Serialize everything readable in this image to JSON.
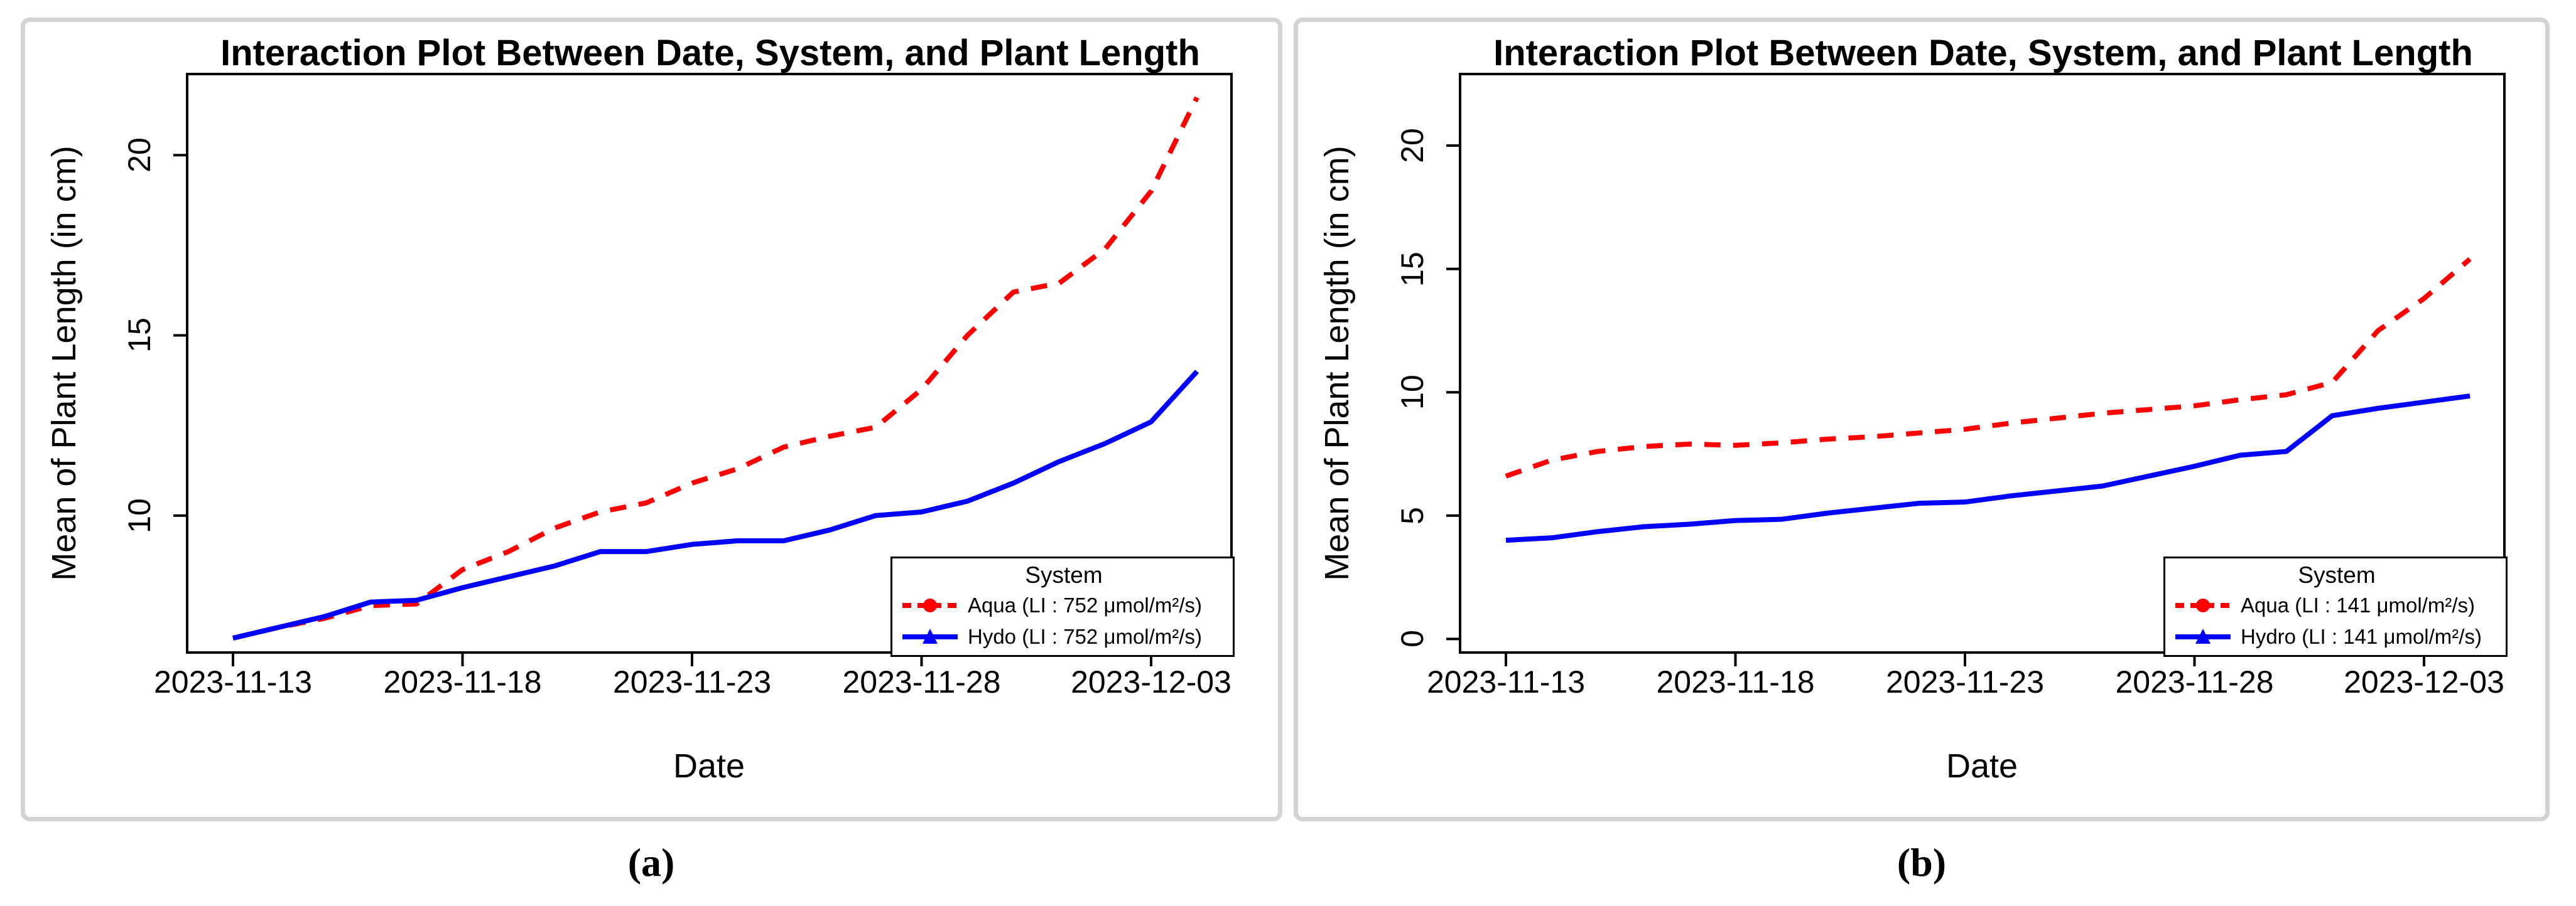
{
  "figure": {
    "panel_labels": [
      "(a)",
      "(b)"
    ],
    "background": "#ffffff",
    "panel_border_color": "#d3d3d3",
    "axis_color": "#000000"
  },
  "chart_data": [
    {
      "type": "line",
      "title": "Interaction Plot Between Date, System, and Plant Length",
      "xlabel": "Date",
      "ylabel": "Mean of Plant Length (in cm)",
      "x": [
        "2023-11-13",
        "2023-11-14",
        "2023-11-15",
        "2023-11-16",
        "2023-11-17",
        "2023-11-18",
        "2023-11-19",
        "2023-11-20",
        "2023-11-21",
        "2023-11-22",
        "2023-11-23",
        "2023-11-24",
        "2023-11-25",
        "2023-11-26",
        "2023-11-27",
        "2023-11-28",
        "2023-11-29",
        "2023-11-30",
        "2023-12-01",
        "2023-12-02",
        "2023-12-03",
        "2023-12-04"
      ],
      "x_tick_labels": [
        "2023-11-13",
        "2023-11-18",
        "2023-11-23",
        "2023-11-28",
        "2023-12-03"
      ],
      "y_ticks": [
        10,
        15,
        20
      ],
      "ylim": [
        6.2,
        22.25
      ],
      "grid": false,
      "legend": {
        "title": "System",
        "position": "bottom-right"
      },
      "series": [
        {
          "name": "Aqua (LI : 752 μmol/m²/s)",
          "color": "#FF0000",
          "line_style": "dashed",
          "marker": "circle",
          "values": [
            6.6,
            6.9,
            7.15,
            7.5,
            7.55,
            8.5,
            9.0,
            9.65,
            10.1,
            10.35,
            10.9,
            11.3,
            11.9,
            12.2,
            12.45,
            13.5,
            15.0,
            16.2,
            16.45,
            17.4,
            19.0,
            21.6
          ]
        },
        {
          "name": "Hydo (LI : 752 μmol/m²/s)",
          "color": "#0000FF",
          "line_style": "solid",
          "marker": "triangle",
          "values": [
            6.6,
            6.9,
            7.2,
            7.6,
            7.65,
            8.0,
            8.3,
            8.6,
            9.0,
            9.0,
            9.2,
            9.3,
            9.3,
            9.6,
            10.0,
            10.1,
            10.4,
            10.9,
            11.5,
            12.0,
            12.6,
            14.0
          ]
        }
      ]
    },
    {
      "type": "line",
      "title": "Interaction Plot Between Date, System, and Plant Length",
      "xlabel": "Date",
      "ylabel": "Mean of Plant Length (in cm)",
      "x": [
        "2023-11-13",
        "2023-11-14",
        "2023-11-15",
        "2023-11-16",
        "2023-11-17",
        "2023-11-18",
        "2023-11-19",
        "2023-11-20",
        "2023-11-21",
        "2023-11-22",
        "2023-11-23",
        "2023-11-24",
        "2023-11-25",
        "2023-11-26",
        "2023-11-27",
        "2023-11-28",
        "2023-11-29",
        "2023-11-30",
        "2023-12-01",
        "2023-12-02",
        "2023-12-03",
        "2023-12-04"
      ],
      "x_tick_labels": [
        "2023-11-13",
        "2023-11-18",
        "2023-11-23",
        "2023-11-28",
        "2023-12-03"
      ],
      "y_ticks": [
        0,
        5,
        10,
        15,
        20
      ],
      "ylim": [
        -0.55,
        22.9
      ],
      "grid": false,
      "legend": {
        "title": "System",
        "position": "bottom-right"
      },
      "series": [
        {
          "name": "Aqua (LI : 141 μmol/m²/s)",
          "color": "#FF0000",
          "line_style": "dashed",
          "marker": "circle",
          "values": [
            6.6,
            7.25,
            7.6,
            7.8,
            7.9,
            7.85,
            7.95,
            8.1,
            8.2,
            8.35,
            8.5,
            8.75,
            8.95,
            9.15,
            9.3,
            9.45,
            9.7,
            9.9,
            10.4,
            12.5,
            13.8,
            15.4
          ]
        },
        {
          "name": "Hydro (LI : 141 μmol/m²/s)",
          "color": "#0000FF",
          "line_style": "solid",
          "marker": "triangle",
          "values": [
            4.0,
            4.1,
            4.35,
            4.55,
            4.65,
            4.8,
            4.85,
            5.1,
            5.3,
            5.5,
            5.55,
            5.8,
            6.0,
            6.2,
            6.6,
            7.0,
            7.45,
            7.6,
            9.05,
            9.35,
            9.6,
            9.85
          ]
        }
      ]
    }
  ]
}
